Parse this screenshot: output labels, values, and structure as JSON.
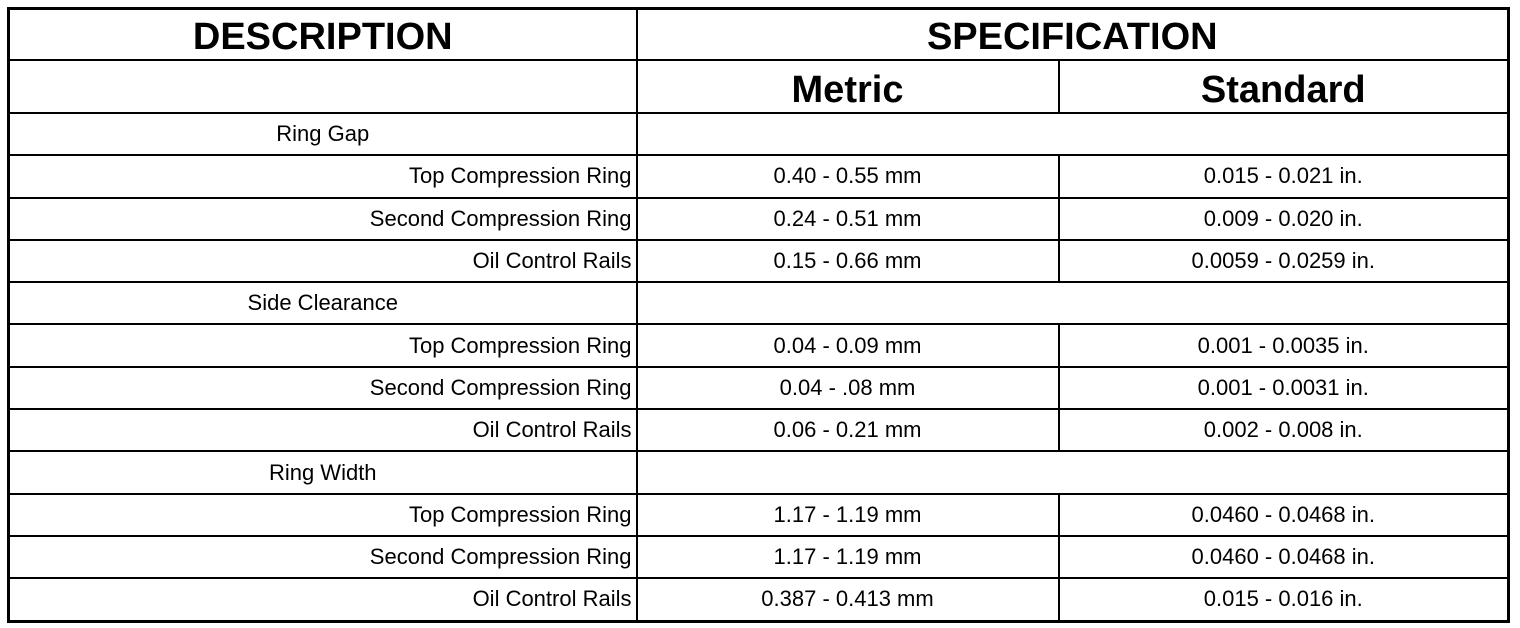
{
  "table": {
    "headers": {
      "description": "DESCRIPTION",
      "specification": "SPECIFICATION",
      "metric": "Metric",
      "standard": "Standard"
    },
    "sections": [
      {
        "title": "Ring Gap",
        "rows": [
          [
            "Top Compression Ring",
            "0.40 - 0.55 mm",
            "0.015 - 0.021 in."
          ],
          [
            "Second Compression Ring",
            "0.24 - 0.51 mm",
            "0.009 - 0.020 in."
          ],
          [
            "Oil Control Rails",
            "0.15 - 0.66 mm",
            "0.0059 - 0.0259 in."
          ]
        ]
      },
      {
        "title": "Side Clearance",
        "rows": [
          [
            "Top Compression Ring",
            "0.04 - 0.09 mm",
            "0.001 - 0.0035 in."
          ],
          [
            "Second Compression Ring",
            "0.04 - .08 mm",
            "0.001 - 0.0031 in."
          ],
          [
            "Oil Control Rails",
            "0.06 - 0.21 mm",
            "0.002 - 0.008 in."
          ]
        ]
      },
      {
        "title": "Ring Width",
        "rows": [
          [
            "Top Compression Ring",
            "1.17 - 1.19 mm",
            "0.0460 - 0.0468 in."
          ],
          [
            "Second Compression Ring",
            "1.17 - 1.19 mm",
            "0.0460 - 0.0468 in."
          ],
          [
            "Oil Control Rails",
            "0.387 - 0.413 mm",
            "0.015 - 0.016 in."
          ]
        ]
      }
    ]
  }
}
